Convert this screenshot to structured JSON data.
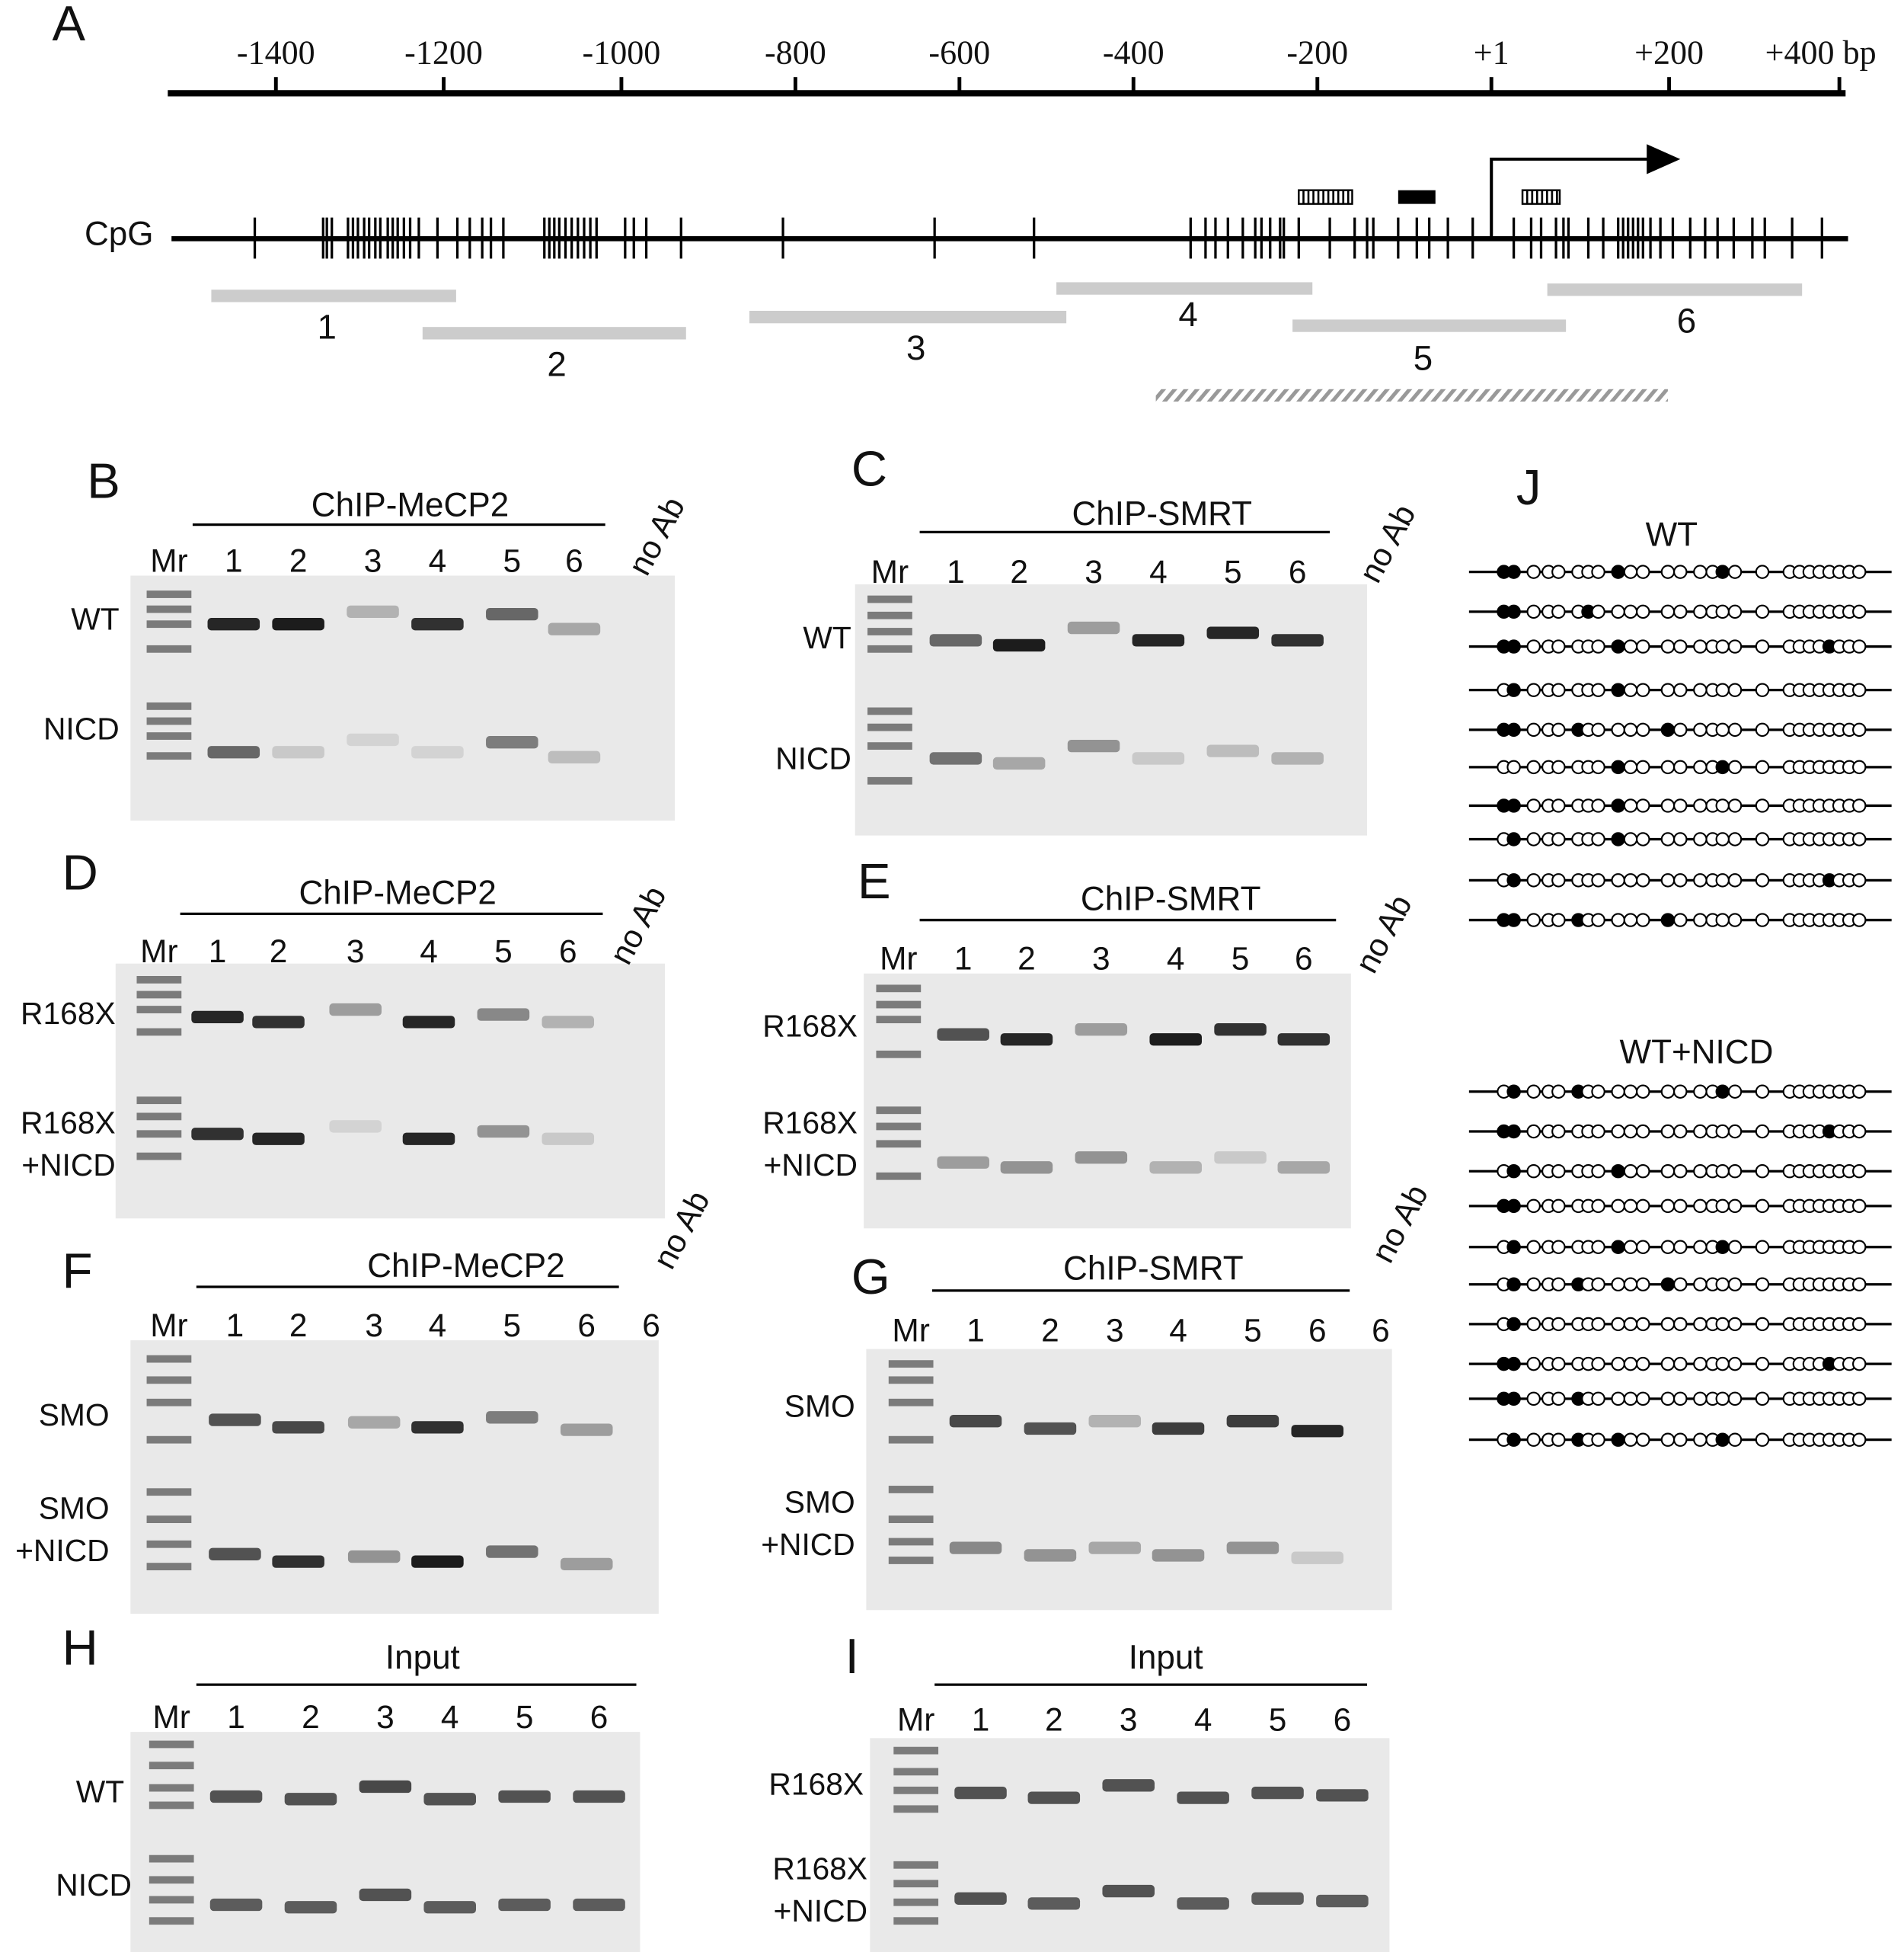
{
  "panel_a": {
    "label": "A",
    "axis_ticks": [
      "-1400",
      "-1200",
      "-1000",
      "-800",
      "-600",
      "-400",
      "-200",
      "+1",
      "+200",
      "+400 bp"
    ],
    "cpg_label": "CpG",
    "amplicons": [
      "1",
      "2",
      "3",
      "4",
      "5",
      "6"
    ]
  },
  "gels": [
    {
      "label": "B",
      "title": "ChIP-MeCP2",
      "lanes": [
        "Mr",
        "1",
        "2",
        "3",
        "4",
        "5",
        "6"
      ],
      "extra_lane": "no Ab",
      "rows": [
        [
          "WT"
        ],
        [
          "NICD"
        ]
      ]
    },
    {
      "label": "C",
      "title": "ChIP-SMRT",
      "lanes": [
        "Mr",
        "1",
        "2",
        "3",
        "4",
        "5",
        "6"
      ],
      "extra_lane": "no Ab",
      "rows": [
        [
          "WT"
        ],
        [
          "NICD"
        ]
      ]
    },
    {
      "label": "D",
      "title": "ChIP-MeCP2",
      "lanes": [
        "Mr",
        "1",
        "2",
        "3",
        "4",
        "5",
        "6"
      ],
      "extra_lane": "no Ab",
      "rows": [
        [
          "R168X"
        ],
        [
          "R168X",
          "+NICD"
        ]
      ]
    },
    {
      "label": "E",
      "title": "ChIP-SMRT",
      "lanes": [
        "Mr",
        "1",
        "2",
        "3",
        "4",
        "5",
        "6"
      ],
      "extra_lane": "no Ab",
      "rows": [
        [
          "R168X"
        ],
        [
          "R168X",
          "+NICD"
        ]
      ]
    },
    {
      "label": "F",
      "title": "ChIP-MeCP2",
      "lanes": [
        "Mr",
        "1",
        "2",
        "3",
        "4",
        "5",
        "6",
        "6"
      ],
      "extra_lane": "no Ab",
      "rows": [
        [
          "SMO"
        ],
        [
          "SMO",
          "+NICD"
        ]
      ]
    },
    {
      "label": "G",
      "title": "ChIP-SMRT",
      "lanes": [
        "Mr",
        "1",
        "2",
        "3",
        "4",
        "5",
        "6",
        "6"
      ],
      "extra_lane": "no Ab",
      "rows": [
        [
          "SMO"
        ],
        [
          "SMO",
          "+NICD"
        ]
      ]
    },
    {
      "label": "H",
      "title": "Input",
      "lanes": [
        "Mr",
        "1",
        "2",
        "3",
        "4",
        "5",
        "6"
      ],
      "rows": [
        [
          "WT"
        ],
        [
          "NICD"
        ]
      ]
    },
    {
      "label": "I",
      "title": "Input",
      "lanes": [
        "Mr",
        "1",
        "2",
        "3",
        "4",
        "5",
        "6"
      ],
      "rows": [
        [
          "R168X"
        ],
        [
          "R168X",
          "+NICD"
        ]
      ]
    }
  ],
  "panel_j": {
    "label": "J",
    "groups": [
      {
        "title": "WT"
      },
      {
        "title": "WT+NICD"
      }
    ]
  }
}
